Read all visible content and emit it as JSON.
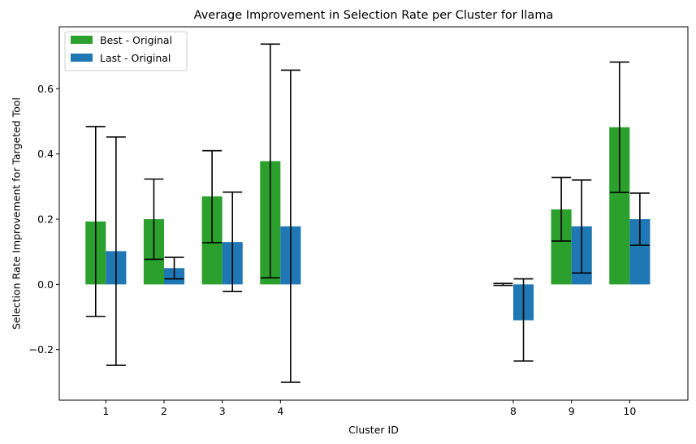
{
  "chart_data": {
    "type": "bar",
    "title": "Average Improvement in Selection Rate per Cluster for llama",
    "xlabel": "Cluster ID",
    "ylabel": "Selection Rate Improvement for Targeted Tool",
    "x": [
      1,
      2,
      3,
      4,
      8,
      9,
      10
    ],
    "xlim": [
      0.2,
      11.0
    ],
    "ylim": [
      -0.355,
      0.79
    ],
    "yticks": [
      -0.2,
      0.0,
      0.2,
      0.4,
      0.6
    ],
    "ytick_labels": [
      "−0.2",
      "0.0",
      "0.2",
      "0.4",
      "0.6"
    ],
    "bar_width": 0.35,
    "grid": false,
    "legend_position": "upper-left",
    "series": [
      {
        "name": "Best - Original",
        "color": "#2ca02c",
        "values": [
          0.193,
          0.2,
          0.27,
          0.378,
          0.0,
          0.23,
          0.482
        ],
        "err_low": [
          -0.098,
          0.077,
          0.128,
          0.02,
          -0.003,
          0.133,
          0.282
        ],
        "err_high": [
          0.484,
          0.323,
          0.41,
          0.737,
          0.003,
          0.328,
          0.682
        ]
      },
      {
        "name": "Last - Original",
        "color": "#1f77b4",
        "values": [
          0.102,
          0.05,
          0.13,
          0.178,
          -0.11,
          0.178,
          0.2
        ],
        "err_low": [
          -0.248,
          0.017,
          -0.022,
          -0.3,
          -0.235,
          0.035,
          0.12
        ],
        "err_high": [
          0.452,
          0.083,
          0.283,
          0.657,
          0.017,
          0.32,
          0.28
        ]
      }
    ]
  }
}
